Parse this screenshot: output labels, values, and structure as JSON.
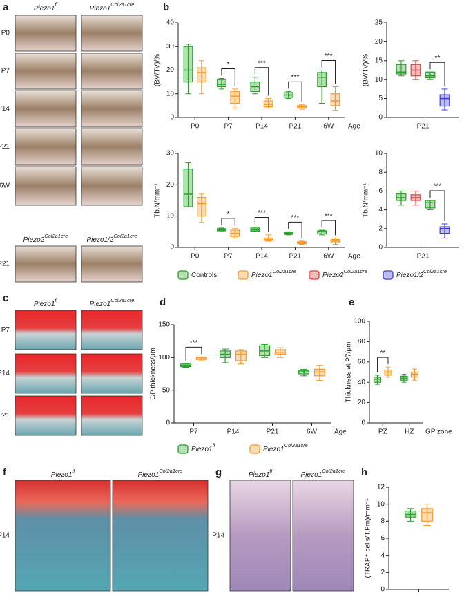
{
  "panel_labels": [
    "a",
    "b",
    "c",
    "d",
    "e",
    "f",
    "g",
    "h"
  ],
  "images": {
    "a": {
      "headers": [
        {
          "text": "Piezo1",
          "sup": "fl"
        },
        {
          "text": "Piezo1",
          "sup": "Col2a1cre"
        }
      ],
      "rows": [
        "P0",
        "P7",
        "P14",
        "P21",
        "6W"
      ],
      "headers2": [
        {
          "text": "Piezo2",
          "sup": "Col2a1cre"
        },
        {
          "text": "Piezo1/2",
          "sup": "Col2a1cre"
        }
      ],
      "rows2": [
        "P21"
      ]
    },
    "c": {
      "headers": [
        {
          "text": "Piezo1",
          "sup": "fl"
        },
        {
          "text": "Piezo1",
          "sup": "Col2a1cre"
        }
      ],
      "rows": [
        "P7",
        "P14",
        "P21"
      ]
    },
    "f": {
      "headers": [
        {
          "text": "Piezo1",
          "sup": "fl"
        },
        {
          "text": "Piezo1",
          "sup": "Col2a1cre"
        }
      ],
      "rows": [
        "P14"
      ]
    },
    "g": {
      "headers": [
        {
          "text": "Piezo1",
          "sup": "fl"
        },
        {
          "text": "Piezo1",
          "sup": "Col2a1cre"
        }
      ],
      "rows": [
        "P14"
      ]
    }
  },
  "legends": {
    "b": [
      {
        "text": "Controls",
        "color": "#2ca02c"
      },
      {
        "text": "Piezo1",
        "sup": "Col2a1cre",
        "color": "#f39a2e"
      },
      {
        "text": "Piezo2",
        "sup": "Col2a1cre",
        "color": "#e0403f"
      },
      {
        "text": "Piezo1/2",
        "sup": "Col2a1cre",
        "color": "#3f3fd6"
      }
    ],
    "d": [
      {
        "text": "Piezo1",
        "sup": "fl",
        "color": "#2ca02c"
      },
      {
        "text": "Piezo1",
        "sup": "Col2a1cre",
        "color": "#f39a2e"
      }
    ]
  },
  "chart_data": [
    {
      "type": "box",
      "ylabel": "(BV/TV)/%",
      "xlabel": "Age",
      "categories": [
        "P0",
        "P7",
        "P14",
        "P21",
        "6W"
      ],
      "ylim": [
        0,
        40
      ],
      "yticks": [
        0,
        10,
        20,
        30,
        40
      ],
      "series": [
        {
          "color": "#2ca02c",
          "values": [
            [
              10,
              15,
              20,
              30,
              31
            ],
            [
              12,
              13,
              14,
              16,
              16.5
            ],
            [
              10,
              11,
              13,
              15,
              17
            ],
            [
              8,
              8.5,
              9.5,
              10.5,
              11
            ],
            [
              6,
              13,
              17,
              19,
              20
            ]
          ]
        },
        {
          "color": "#f39a2e",
          "values": [
            [
              10,
              15,
              19,
              21,
              24
            ],
            [
              4,
              6,
              9,
              11,
              12
            ],
            [
              4,
              4.5,
              5.5,
              7,
              8
            ],
            [
              3.5,
              4,
              4.5,
              5,
              5.5
            ],
            [
              3,
              5,
              7,
              10,
              13
            ]
          ]
        }
      ],
      "significance": [
        null,
        "*",
        "***",
        "***",
        "***"
      ]
    },
    {
      "type": "box",
      "ylabel": "(BV/TV)/%",
      "categories": [
        "P21"
      ],
      "ylim": [
        0,
        25
      ],
      "yticks": [
        0,
        5,
        10,
        15,
        20,
        25
      ],
      "series": [
        {
          "color": "#2ca02c",
          "values": [
            [
              11,
              11.5,
              12,
              14,
              15
            ]
          ]
        },
        {
          "color": "#e0403f",
          "values": [
            [
              10,
              11,
              12.5,
              14,
              15
            ]
          ]
        },
        {
          "color": "#2ca02c",
          "values": [
            [
              10,
              10.5,
              11,
              12,
              12
            ]
          ]
        },
        {
          "color": "#3f3fd6",
          "values": [
            [
              2,
              3,
              5,
              6,
              7.5
            ]
          ]
        }
      ],
      "significance": [
        "**"
      ]
    },
    {
      "type": "box",
      "ylabel": "Tb.N/mm⁻¹",
      "xlabel": "Age",
      "categories": [
        "P0",
        "P7",
        "P14",
        "P21",
        "6W"
      ],
      "ylim": [
        0,
        30
      ],
      "yticks": [
        0,
        10,
        20,
        30
      ],
      "series": [
        {
          "color": "#2ca02c",
          "values": [
            [
              13,
              13,
              17,
              25,
              27
            ],
            [
              5,
              5.3,
              5.6,
              6,
              6.2
            ],
            [
              5,
              5.2,
              5.6,
              6.2,
              6.5
            ],
            [
              4,
              4.2,
              4.5,
              4.8,
              5
            ],
            [
              4,
              4.3,
              5,
              5.3,
              5.5
            ]
          ]
        },
        {
          "color": "#f39a2e",
          "values": [
            [
              8,
              10,
              14,
              16,
              17
            ],
            [
              3,
              3.5,
              4.5,
              5.5,
              6
            ],
            [
              2,
              2.2,
              2.5,
              3,
              4
            ],
            [
              1,
              1.2,
              1.6,
              1.8,
              2
            ],
            [
              1,
              1.5,
              2,
              2.5,
              3
            ]
          ]
        }
      ],
      "significance": [
        null,
        "*",
        "***",
        "***",
        "***"
      ]
    },
    {
      "type": "box",
      "ylabel": "Tb.N/mm⁻¹",
      "categories": [
        "P21"
      ],
      "ylim": [
        0,
        10
      ],
      "yticks": [
        0,
        2,
        4,
        6,
        8,
        10
      ],
      "series": [
        {
          "color": "#2ca02c",
          "values": [
            [
              4.5,
              5,
              5.3,
              5.7,
              6
            ]
          ]
        },
        {
          "color": "#e0403f",
          "values": [
            [
              4.5,
              5,
              5.3,
              5.6,
              6
            ]
          ]
        },
        {
          "color": "#2ca02c",
          "values": [
            [
              4,
              4.2,
              4.8,
              5,
              5
            ]
          ]
        },
        {
          "color": "#3f3fd6",
          "values": [
            [
              1,
              1.5,
              2,
              2.2,
              2.5
            ]
          ]
        }
      ],
      "significance": [
        "***"
      ]
    },
    {
      "type": "box",
      "ylabel": "GP thickness/μm",
      "xlabel": "Age",
      "categories": [
        "P7",
        "P14",
        "P21",
        "6W"
      ],
      "ylim": [
        0,
        150
      ],
      "yticks": [
        0,
        50,
        100,
        150
      ],
      "series": [
        {
          "color": "#2ca02c",
          "values": [
            [
              85,
              86,
              88,
              90,
              91
            ],
            [
              92,
              100,
              105,
              110,
              113
            ],
            [
              100,
              103,
              110,
              118,
              120
            ],
            [
              72,
              75,
              78,
              80,
              82
            ]
          ]
        },
        {
          "color": "#f39a2e",
          "values": [
            [
              95,
              97,
              98,
              100,
              101
            ],
            [
              90,
              95,
              105,
              110,
              112
            ],
            [
              100,
              105,
              108,
              112,
              115
            ],
            [
              65,
              72,
              78,
              82,
              88
            ]
          ]
        }
      ],
      "significance": [
        "***",
        null,
        null,
        null
      ]
    },
    {
      "type": "box",
      "ylabel": "Thickness at P7/μm",
      "xlabel": "GP zone",
      "categories": [
        "PZ",
        "HZ"
      ],
      "ylim": [
        0,
        100
      ],
      "yticks": [
        0,
        20,
        40,
        60,
        80,
        100
      ],
      "series": [
        {
          "color": "#2ca02c",
          "values": [
            [
              38,
              40,
              43,
              45,
              47
            ],
            [
              40,
              42,
              44,
              46,
              48
            ]
          ]
        },
        {
          "color": "#f39a2e",
          "values": [
            [
              45,
              47,
              50,
              52,
              55
            ],
            [
              42,
              45,
              48,
              50,
              53
            ]
          ]
        }
      ],
      "significance": [
        "**",
        null
      ]
    },
    {
      "type": "box",
      "ylabel": "(TRAP⁺ cells/T.Pm)/mm⁻¹",
      "categories": [
        null
      ],
      "ylim": [
        0,
        12
      ],
      "yticks": [
        0,
        2,
        4,
        6,
        8,
        10,
        12
      ],
      "series": [
        {
          "color": "#2ca02c",
          "values": [
            [
              8,
              8.5,
              8.8,
              9.2,
              9.5
            ]
          ]
        },
        {
          "color": "#f39a2e",
          "values": [
            [
              7.5,
              8,
              9,
              9.5,
              10
            ]
          ]
        }
      ],
      "significance": [
        null
      ]
    }
  ]
}
